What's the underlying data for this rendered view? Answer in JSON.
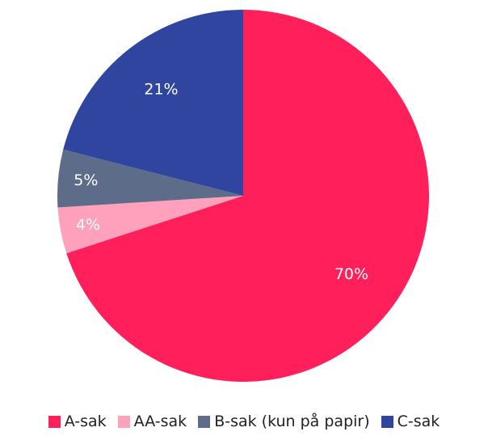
{
  "chart_data": {
    "type": "pie",
    "categories": [
      "A-sak",
      "AA-sak",
      "B-sak (kun på papir)",
      "C-sak"
    ],
    "values": [
      70,
      4,
      5,
      21
    ],
    "value_labels": [
      "70%",
      "4%",
      "5%",
      "21%"
    ],
    "colors": [
      "#ff1f5a",
      "#ffa0bc",
      "#5d6c88",
      "#2f45a0"
    ],
    "legend": "bottom"
  }
}
